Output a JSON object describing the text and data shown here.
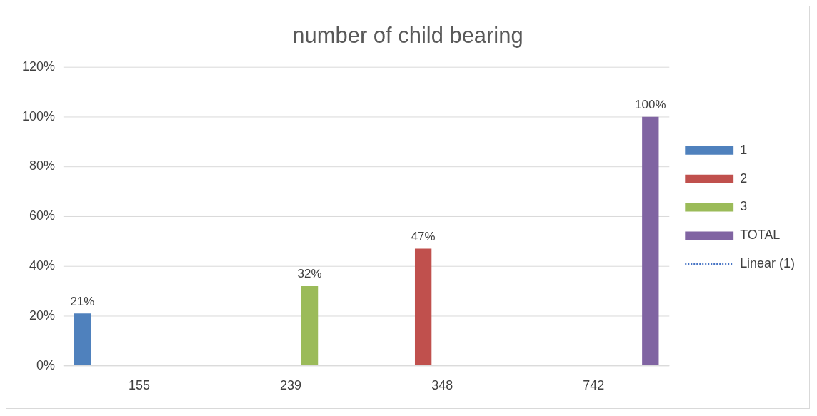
{
  "chart_data": {
    "type": "bar",
    "title": "number of child bearing",
    "categories": [
      "155",
      "239",
      "348",
      "742"
    ],
    "series": [
      {
        "name": "1",
        "color": "#4f81bd",
        "values": [
          21,
          null,
          null,
          null
        ],
        "value_labels": [
          "21%",
          null,
          null,
          null
        ]
      },
      {
        "name": "2",
        "color": "#c0504d",
        "values": [
          null,
          null,
          47,
          null
        ],
        "value_labels": [
          null,
          null,
          "47%",
          null
        ]
      },
      {
        "name": "3",
        "color": "#9bbb59",
        "values": [
          null,
          32,
          null,
          null
        ],
        "value_labels": [
          null,
          "32%",
          null,
          null
        ]
      },
      {
        "name": "TOTAL",
        "color": "#8064a2",
        "values": [
          null,
          null,
          null,
          100
        ],
        "value_labels": [
          null,
          null,
          null,
          "100%"
        ]
      },
      {
        "name": "Linear (1)",
        "type": "line",
        "line_style": "dotted",
        "color": "#4472c4",
        "values": [
          null,
          null,
          null,
          null
        ]
      }
    ],
    "ylim": [
      0,
      120
    ],
    "yticks": [
      {
        "value": 0,
        "label": "0%"
      },
      {
        "value": 20,
        "label": "20%"
      },
      {
        "value": 40,
        "label": "40%"
      },
      {
        "value": 60,
        "label": "60%"
      },
      {
        "value": 80,
        "label": "80%"
      },
      {
        "value": 100,
        "label": "100%"
      },
      {
        "value": 120,
        "label": "120%"
      }
    ],
    "grid": "y",
    "legend": "right"
  }
}
